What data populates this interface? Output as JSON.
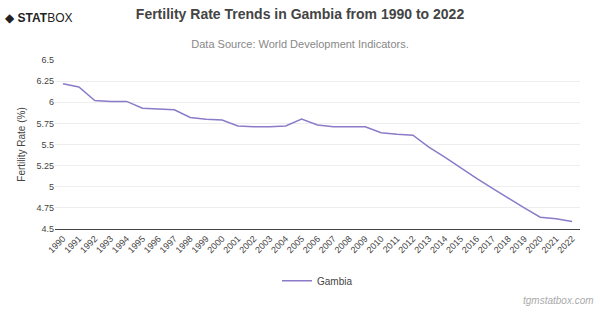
{
  "chart_data": {
    "type": "line",
    "title": "Fertility Rate Trends in Gambia from 1990 to 2022",
    "subtitle": "Data Source: World Development Indicators.",
    "y_label": "Fertility Rate (%)",
    "x": [
      1990,
      1991,
      1992,
      1993,
      1994,
      1995,
      1996,
      1997,
      1998,
      1999,
      2000,
      2001,
      2002,
      2003,
      2004,
      2005,
      2006,
      2007,
      2008,
      2009,
      2010,
      2011,
      2012,
      2013,
      2014,
      2015,
      2016,
      2017,
      2018,
      2019,
      2020,
      2021,
      2022
    ],
    "series": [
      {
        "name": "Gambia",
        "color": "#8B7BC8",
        "values": [
          6.22,
          6.18,
          6.02,
          6.01,
          6.01,
          5.93,
          5.92,
          5.91,
          5.82,
          5.8,
          5.79,
          5.72,
          5.71,
          5.71,
          5.72,
          5.8,
          5.73,
          5.71,
          5.71,
          5.71,
          5.64,
          5.62,
          5.61,
          5.47,
          5.35,
          5.22,
          5.1,
          4.98,
          4.86,
          4.75,
          4.64,
          4.62,
          4.59
        ]
      }
    ],
    "xlim": [
      1989.5,
      2022.5
    ],
    "xticks": [
      1990,
      1991,
      1992,
      1993,
      1994,
      1995,
      1996,
      1997,
      1998,
      1999,
      2000,
      2001,
      2002,
      2003,
      2004,
      2005,
      2006,
      2007,
      2008,
      2009,
      2010,
      2011,
      2012,
      2013,
      2014,
      2015,
      2016,
      2017,
      2018,
      2019,
      2020,
      2021,
      2022
    ],
    "ylim": [
      4.5,
      6.5
    ],
    "yticks": [
      4.5,
      4.75,
      5,
      5.25,
      5.5,
      5.75,
      6,
      6.25,
      6.5
    ],
    "grid": true,
    "legend": "bottom",
    "annotations": [
      "◆",
      "STAT",
      "BOX",
      "tgmstatbox.com"
    ]
  }
}
